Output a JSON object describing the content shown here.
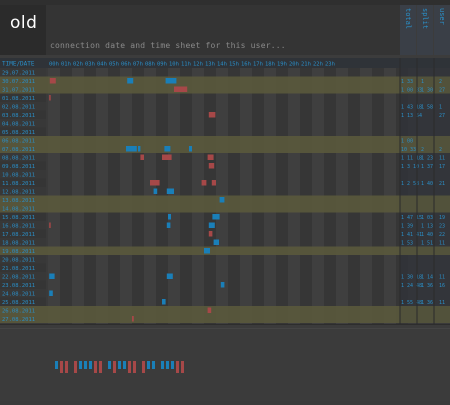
{
  "app": {
    "logo_text": "old"
  },
  "header": {
    "subtitle": "connection date and time sheet for this user..."
  },
  "summary_columns": [
    {
      "label": "total"
    },
    {
      "label": "split"
    },
    {
      "label": "user"
    }
  ],
  "time_header": {
    "date_label": "TIME/DATE",
    "hours": [
      "00h",
      "01h",
      "02h",
      "03h",
      "04h",
      "05h",
      "06h",
      "07h",
      "08h",
      "09h",
      "10h",
      "11h",
      "12h",
      "13h",
      "14h",
      "15h",
      "16h",
      "17h",
      "18h",
      "19h",
      "20h",
      "21h",
      "22h",
      "23h"
    ]
  },
  "rows": [
    {
      "date": "29.07.2011",
      "weekend": false,
      "sessions": [],
      "total": "",
      "split": "",
      "user": ""
    },
    {
      "date": "30.07.2011",
      "weekend": true,
      "sessions": [
        {
          "start": 0.3,
          "end": 1.3,
          "type": "red"
        },
        {
          "start": 13.2,
          "end": 14.2,
          "type": "blue"
        },
        {
          "start": 19.6,
          "end": 21.4,
          "type": "blue"
        }
      ],
      "total": "1 33",
      "split": "1",
      "user": "2"
    },
    {
      "date": "31.07.2011",
      "weekend": true,
      "sessions": [
        {
          "start": 21.0,
          "end": 23.2,
          "type": "red"
        }
      ],
      "total": "1 00 33",
      "split": "1 30",
      "user": "27"
    },
    {
      "date": "01.08.2011",
      "weekend": false,
      "sessions": [
        {
          "start": 0.2,
          "end": 0.25,
          "type": "red"
        }
      ],
      "total": "",
      "split": "",
      "user": ""
    },
    {
      "date": "02.08.2011",
      "weekend": false,
      "sessions": [],
      "total": "1 43 18",
      "split": "1 58",
      "user": "1"
    },
    {
      "date": "03.08.2011",
      "weekend": false,
      "sessions": [
        {
          "start": 26.8,
          "end": 27.9,
          "type": "red"
        }
      ],
      "total": "1 13 54",
      "split": "",
      "user": "27"
    },
    {
      "date": "04.08.2011",
      "weekend": false,
      "sessions": [],
      "total": "",
      "split": "",
      "user": ""
    },
    {
      "date": "05.08.2011",
      "weekend": false,
      "sessions": [],
      "total": "",
      "split": "",
      "user": ""
    },
    {
      "date": "06.08.2011",
      "weekend": true,
      "sessions": [],
      "total": "1 00",
      "split": "",
      "user": ""
    },
    {
      "date": "07.08.2011",
      "weekend": true,
      "sessions": [
        {
          "start": 13.0,
          "end": 14.8,
          "type": "blue"
        },
        {
          "start": 15.0,
          "end": 15.4,
          "type": "blue"
        },
        {
          "start": 19.4,
          "end": 20.4,
          "type": "blue"
        },
        {
          "start": 23.5,
          "end": 24.0,
          "type": "blue"
        }
      ],
      "total": "10 33",
      "split": "2",
      "user": "2"
    },
    {
      "date": "08.08.2011",
      "weekend": false,
      "sessions": [
        {
          "start": 15.4,
          "end": 16.0,
          "type": "red"
        },
        {
          "start": 19.0,
          "end": 20.6,
          "type": "red"
        },
        {
          "start": 26.6,
          "end": 27.6,
          "type": "red"
        }
      ],
      "total": "1 11 18",
      "split": "1 23",
      "user": "11"
    },
    {
      "date": "09.08.2011",
      "weekend": false,
      "sessions": [
        {
          "start": 26.8,
          "end": 27.7,
          "type": "red"
        }
      ],
      "total": "1 3 10",
      "split": "1 37",
      "user": "17"
    },
    {
      "date": "10.08.2011",
      "weekend": false,
      "sessions": [],
      "total": "",
      "split": "",
      "user": ""
    },
    {
      "date": "11.08.2011",
      "weekend": false,
      "sessions": [
        {
          "start": 17.0,
          "end": 18.6,
          "type": "red"
        },
        {
          "start": 25.6,
          "end": 26.4,
          "type": "red"
        },
        {
          "start": 27.3,
          "end": 28.0,
          "type": "red"
        }
      ],
      "total": "1 2 58",
      "split": "1 40",
      "user": "21"
    },
    {
      "date": "12.08.2011",
      "weekend": false,
      "sessions": [
        {
          "start": 17.6,
          "end": 18.2,
          "type": "blue"
        },
        {
          "start": 19.8,
          "end": 21.0,
          "type": "blue"
        }
      ],
      "total": "",
      "split": "",
      "user": ""
    },
    {
      "date": "13.08.2011",
      "weekend": true,
      "sessions": [
        {
          "start": 28.6,
          "end": 29.4,
          "type": "blue"
        }
      ],
      "total": "",
      "split": "",
      "user": ""
    },
    {
      "date": "14.08.2011",
      "weekend": true,
      "sessions": [],
      "total": "",
      "split": "",
      "user": ""
    },
    {
      "date": "15.08.2011",
      "weekend": false,
      "sessions": [
        {
          "start": 20.0,
          "end": 20.5,
          "type": "blue"
        },
        {
          "start": 27.4,
          "end": 28.6,
          "type": "blue"
        }
      ],
      "total": "1 47 15",
      "split": "1 03",
      "user": "19"
    },
    {
      "date": "16.08.2011",
      "weekend": false,
      "sessions": [
        {
          "start": 0.2,
          "end": 0.25,
          "type": "red"
        },
        {
          "start": 19.8,
          "end": 20.4,
          "type": "blue"
        },
        {
          "start": 26.8,
          "end": 27.8,
          "type": "blue"
        }
      ],
      "total": "1 39",
      "split": "1 13",
      "user": "23"
    },
    {
      "date": "17.08.2011",
      "weekend": false,
      "sessions": [
        {
          "start": 26.8,
          "end": 27.4,
          "type": "red"
        }
      ],
      "total": "1 41 41",
      "split": "1 40",
      "user": "22"
    },
    {
      "date": "18.08.2011",
      "weekend": false,
      "sessions": [
        {
          "start": 27.6,
          "end": 28.5,
          "type": "blue"
        }
      ],
      "total": "1 53",
      "split": "1 51",
      "user": "11"
    },
    {
      "date": "19.08.2011",
      "weekend": true,
      "sessions": [
        {
          "start": 26.0,
          "end": 27.0,
          "type": "blue"
        }
      ],
      "total": "",
      "split": "",
      "user": ""
    },
    {
      "date": "20.08.2011",
      "weekend": false,
      "sessions": [],
      "total": "",
      "split": "",
      "user": ""
    },
    {
      "date": "21.08.2011",
      "weekend": false,
      "sessions": [],
      "total": "",
      "split": "",
      "user": ""
    },
    {
      "date": "22.08.2011",
      "weekend": false,
      "sessions": [
        {
          "start": 0.2,
          "end": 1.1,
          "type": "blue"
        },
        {
          "start": 19.8,
          "end": 20.8,
          "type": "blue"
        }
      ],
      "total": "1 30 18",
      "split": "1 14",
      "user": "11"
    },
    {
      "date": "23.08.2011",
      "weekend": false,
      "sessions": [
        {
          "start": 28.8,
          "end": 29.4,
          "type": "blue"
        }
      ],
      "total": "1 24 48",
      "split": "1 36",
      "user": "16"
    },
    {
      "date": "24.08.2011",
      "weekend": false,
      "sessions": [
        {
          "start": 0.2,
          "end": 0.8,
          "type": "blue"
        }
      ],
      "total": "",
      "split": "",
      "user": ""
    },
    {
      "date": "25.08.2011",
      "weekend": false,
      "sessions": [
        {
          "start": 19.0,
          "end": 19.6,
          "type": "blue"
        }
      ],
      "total": "1 55 48",
      "split": "1 36",
      "user": "11"
    },
    {
      "date": "26.08.2011",
      "weekend": true,
      "sessions": [
        {
          "start": 26.6,
          "end": 27.2,
          "type": "red"
        }
      ],
      "total": "",
      "split": "",
      "user": ""
    },
    {
      "date": "27.08.2011",
      "weekend": true,
      "sessions": [
        {
          "start": 14.0,
          "end": 14.3,
          "type": "red"
        }
      ],
      "total": "",
      "split": "",
      "user": ""
    }
  ],
  "footer_bars": [
    {
      "type": "blue"
    },
    {
      "type": "red"
    },
    {
      "type": "red"
    },
    {
      "type": "red"
    },
    {
      "type": "blue"
    },
    {
      "type": "blue"
    },
    {
      "type": "blue"
    },
    {
      "type": "red"
    },
    {
      "type": "red"
    },
    {
      "type": "blue"
    },
    {
      "type": "red"
    },
    {
      "type": "blue"
    },
    {
      "type": "blue"
    },
    {
      "type": "red"
    },
    {
      "type": "red"
    },
    {
      "type": "red"
    },
    {
      "type": "blue"
    },
    {
      "type": "blue"
    },
    {
      "type": "blue"
    },
    {
      "type": "blue"
    },
    {
      "type": "blue"
    },
    {
      "type": "red"
    },
    {
      "type": "red"
    }
  ],
  "colors": {
    "blue": "#1a7fb8",
    "red": "#a64848",
    "weekend_band": "#5c5a3c",
    "row_text": "#2a8fc8"
  }
}
